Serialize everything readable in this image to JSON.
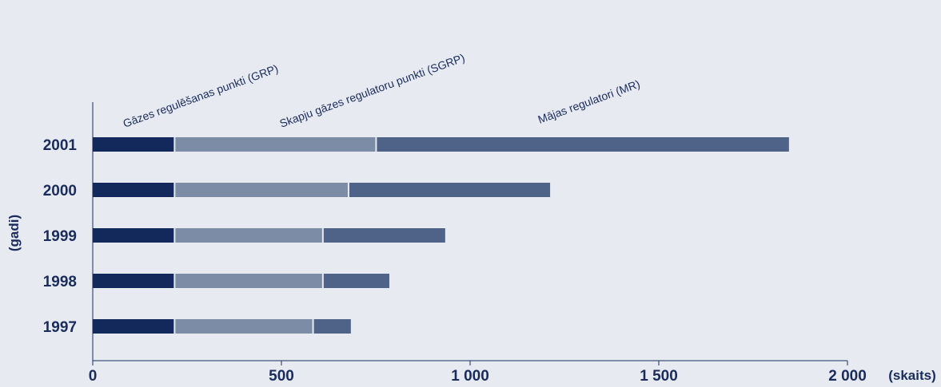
{
  "chart_data": {
    "type": "bar",
    "orientation": "horizontal",
    "stacked": true,
    "categories": [
      "2001",
      "2000",
      "1999",
      "1998",
      "1997"
    ],
    "series": [
      {
        "name": "Gāzes regulēšanas punkti (GRP)",
        "values": [
          219,
          219,
          219,
          219,
          219
        ],
        "color": "#13295b"
      },
      {
        "name": "Skapju gāzes regulatoru punkti (SGRP)",
        "values": [
          534,
          461,
          393,
          393,
          367
        ],
        "color": "#7d8ca6"
      },
      {
        "name": "Mājas regulatori (MR)",
        "values": [
          1092,
          532,
          322,
          174,
          98
        ],
        "color": "#4f6388"
      }
    ],
    "xlim": [
      0,
      2000
    ],
    "x_ticks": [
      {
        "value": 0,
        "label": "0"
      },
      {
        "value": 500,
        "label": "500"
      },
      {
        "value": 1000,
        "label": "1 000"
      },
      {
        "value": 1500,
        "label": "1 500"
      },
      {
        "value": 2000,
        "label": "2 000"
      }
    ],
    "xlabel": "(skaits)",
    "ylabel": "(gadi)",
    "grid": false,
    "legend": "rotated labels above top bar"
  }
}
